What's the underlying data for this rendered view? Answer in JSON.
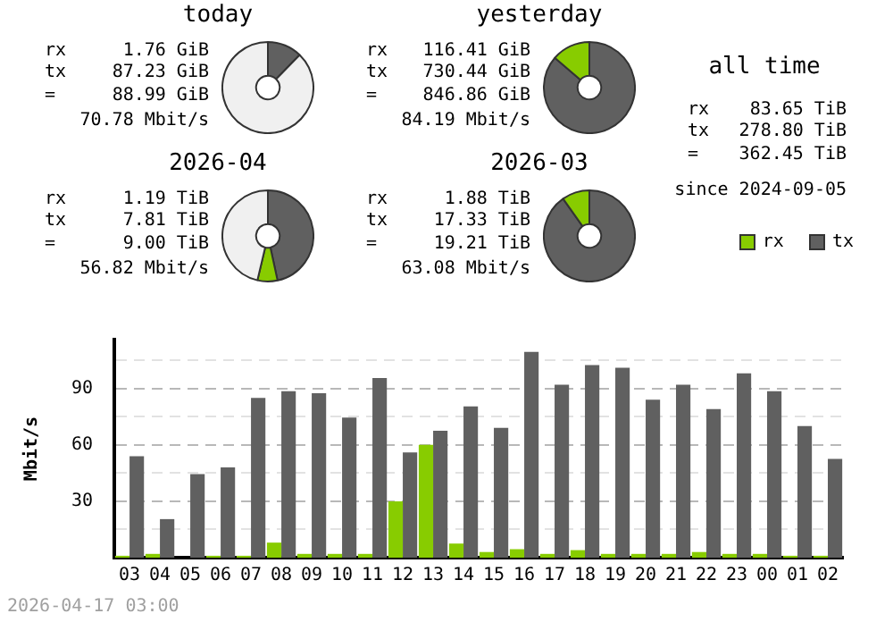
{
  "chart_data": [
    {
      "type": "donut",
      "title": "today",
      "categories": [
        null,
        null,
        null
      ],
      "values": [
        12.25,
        null,
        87.5
      ],
      "colors": [
        "#606060",
        "#88cc00",
        "#f0f0f0"
      ],
      "annotations": [
        "rx",
        "1.76 GiB",
        "tx",
        "87.23 GiB",
        "=",
        "88.99 GiB",
        "70.78 Mbit/s"
      ]
    },
    {
      "type": "donut",
      "title": "yesterday",
      "categories": [
        null,
        null
      ],
      "values": [
        86.3,
        13.7
      ],
      "colors": [
        "#606060",
        "#88cc00"
      ],
      "annotations": [
        "rx",
        "116.41 GiB",
        "tx",
        "730.44 GiB",
        "=",
        "846.86 GiB",
        "84.19 Mbit/s"
      ]
    },
    {
      "type": "donut",
      "title": "2026-04",
      "categories": [
        null,
        null,
        null
      ],
      "values": [
        46.6,
        7.1,
        46.3
      ],
      "colors": [
        "#606060",
        "#88cc00",
        "#f0f0f0"
      ],
      "annotations": [
        "rx",
        "1.19 TiB",
        "tx",
        "7.81 TiB",
        "=",
        "9.00 TiB",
        "56.82 Mbit/s"
      ]
    },
    {
      "type": "donut",
      "title": "2026-03",
      "categories": [
        null,
        null
      ],
      "values": [
        90.2,
        9.8
      ],
      "colors": [
        "#606060",
        "#88cc00"
      ],
      "annotations": [
        "rx",
        "1.88 TiB",
        "tx",
        "17.33 TiB",
        "=",
        "19.21 TiB",
        "63.08 Mbit/s"
      ]
    },
    {
      "type": "other",
      "title": "all time",
      "annotations": [
        "rx",
        "83.65 TiB",
        "tx",
        "278.80 TiB",
        "=",
        "362.45 TiB",
        "since 2024-09-05"
      ]
    },
    {
      "type": "bar",
      "ylabel": "Mbit/s",
      "categories": [
        "03",
        "04",
        "05",
        "06",
        "07",
        "08",
        "09",
        "10",
        "11",
        "12",
        "13",
        "14",
        "15",
        "16",
        "17",
        "18",
        "19",
        "20",
        "21",
        "22",
        "23",
        "00",
        "01",
        "02"
      ],
      "series": [
        {
          "name": "rx",
          "color": "#88cc00",
          "values": [
            1,
            2,
            0,
            1,
            1,
            8,
            2,
            2,
            2,
            30,
            60,
            7.5,
            3,
            4.5,
            2,
            4,
            2,
            2,
            2,
            3,
            2,
            2,
            1,
            1
          ]
        },
        {
          "name": "tx",
          "color": "#606060",
          "values": [
            54,
            20.5,
            44.5,
            48,
            85,
            88.5,
            87.5,
            74.5,
            95.5,
            56,
            67.5,
            80.5,
            69,
            109.5,
            92,
            102.5,
            101,
            84,
            92,
            79,
            98,
            88.5,
            70,
            52.5
          ]
        }
      ],
      "ylim": [
        0,
        116
      ],
      "yticks": [
        {
          "value": 15,
          "label": null
        },
        30,
        {
          "value": 45,
          "label": null
        },
        60,
        {
          "value": 75,
          "label": null
        },
        90,
        {
          "value": 105,
          "label": null
        }
      ],
      "grid": "y",
      "legend": "top right",
      "annotations": [
        "2026-04-17 03:00"
      ]
    }
  ]
}
